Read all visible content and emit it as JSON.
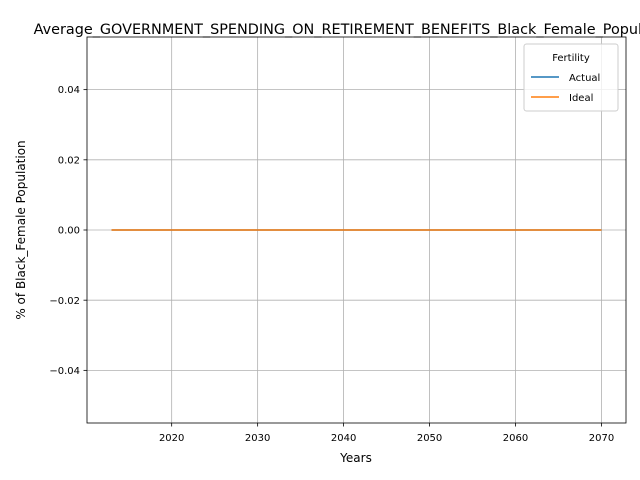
{
  "chart_data": {
    "type": "line",
    "title": "Average_GOVERNMENT_SPENDING_ON_RETIREMENT_BENEFITS_Black_Female_Population",
    "xlabel": "Years",
    "ylabel": "% of Black_Female Population",
    "xlim": [
      2010.15,
      2072.85
    ],
    "ylim": [
      -0.055,
      0.055
    ],
    "xticks": [
      2020,
      2030,
      2040,
      2050,
      2060,
      2070
    ],
    "xtick_labels": [
      "2020",
      "2030",
      "2040",
      "2050",
      "2060",
      "2070"
    ],
    "yticks": [
      -0.04,
      -0.02,
      0.0,
      0.02,
      0.04
    ],
    "ytick_labels": [
      "−0.04",
      "−0.02",
      "0.00",
      "0.02",
      "0.04"
    ],
    "grid": true,
    "legend": {
      "title": "Fertility",
      "position": "top-right"
    },
    "series": [
      {
        "name": "Actual",
        "color": "#1f77b4",
        "x": [
          2013,
          2070
        ],
        "y": [
          0,
          0
        ]
      },
      {
        "name": "Ideal",
        "color": "#ff7f0e",
        "x": [
          2013,
          2070
        ],
        "y": [
          0,
          0
        ]
      }
    ]
  }
}
